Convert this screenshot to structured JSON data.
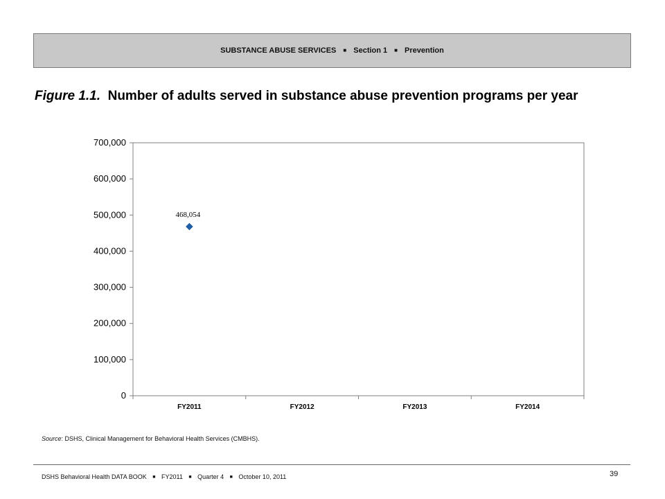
{
  "banner": {
    "part1": "SUBSTANCE ABUSE SERVICES",
    "part2": "Section 1",
    "part3": "Prevention",
    "separator": "■"
  },
  "figure": {
    "label": "Figure 1.1.",
    "title": "Number of adults served in substance abuse prevention programs per year"
  },
  "source": {
    "label": "Source",
    "text": ": DSHS, Clinical Management for Behavioral Health Services (CMBHS)."
  },
  "footer": {
    "part1": "DSHS Behavioral Health DATA BOOK",
    "part2": "FY2011",
    "part3": "Quarter 4",
    "part4": "October 10, 2011",
    "separator": "■",
    "page_number": "39"
  },
  "chart_data": {
    "type": "scatter",
    "title": "",
    "xlabel": "",
    "ylabel": "",
    "categories": [
      "FY2011",
      "FY2012",
      "FY2013",
      "FY2014"
    ],
    "series": [
      {
        "values": [
          468054,
          null,
          null,
          null
        ],
        "labels": [
          "468,054",
          null,
          null,
          null
        ],
        "color": "#1f5fa8",
        "marker": "diamond"
      }
    ],
    "ylim": [
      0,
      700000
    ],
    "yticks": [
      0,
      100000,
      200000,
      300000,
      400000,
      500000,
      600000,
      700000
    ],
    "ytick_labels": [
      "0",
      "100,000",
      "200,000",
      "300,000",
      "400,000",
      "500,000",
      "600,000",
      "700,000"
    ],
    "grid": false,
    "legend": "none"
  }
}
